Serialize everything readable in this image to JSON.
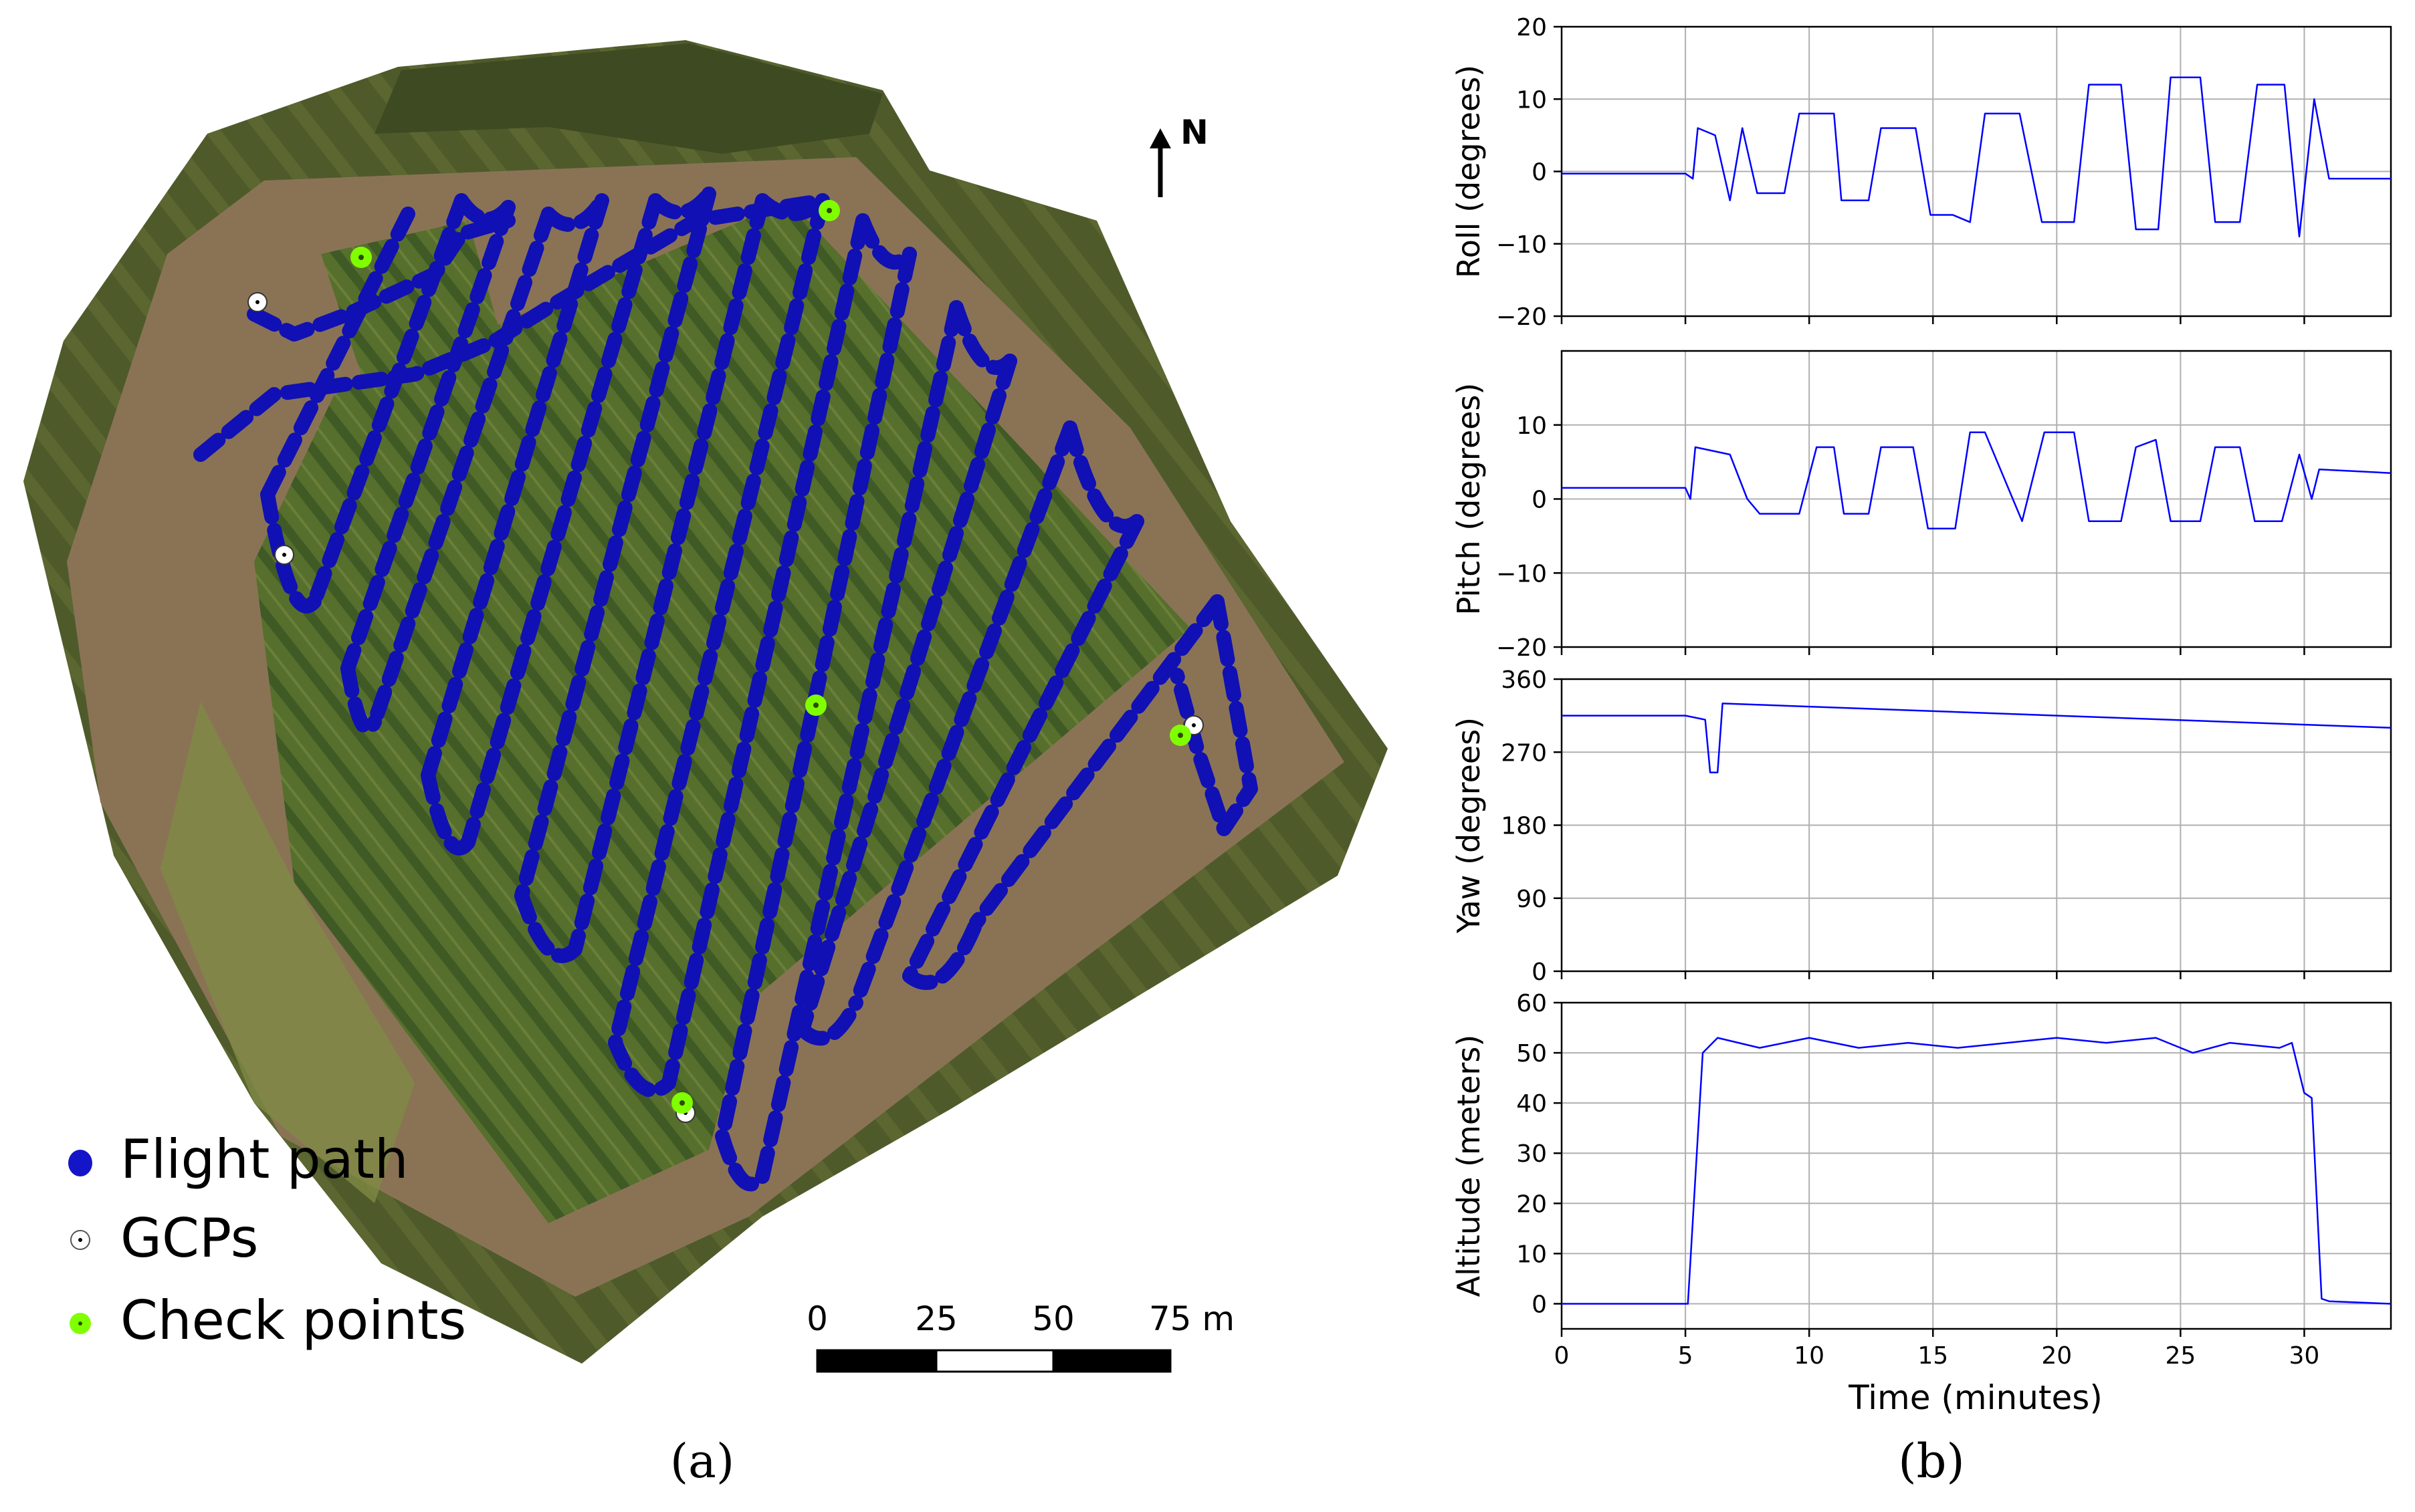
{
  "panel_a": {
    "caption": "(a)",
    "north_label": "N",
    "legend": [
      {
        "label": "Flight path",
        "marker": "flight-path",
        "color": "#1414c8"
      },
      {
        "label": "GCPs",
        "marker": "gcp",
        "color": "#ffffff"
      },
      {
        "label": "Check points",
        "marker": "check-point",
        "color": "#7fff00"
      }
    ],
    "scale_bar": {
      "ticks": [
        "0",
        "25",
        "50",
        "75 m"
      ]
    },
    "colors": {
      "flight_path": "#1010b4",
      "field": "#4d6b2c",
      "soil": "#8a7355",
      "check_point": "#7fff00",
      "gcp": "#ffffff"
    }
  },
  "panel_b": {
    "caption": "(b)",
    "xlabel": "Time (minutes)",
    "line_color": "#0000ff"
  },
  "chart_data": [
    {
      "type": "line",
      "name": "roll",
      "ylabel": "Roll (degrees)",
      "ylim": [
        -20,
        20
      ],
      "yticks": [
        -20,
        -10,
        0,
        10,
        20
      ],
      "xlim": [
        0,
        33.5
      ],
      "xticks": [
        0,
        5,
        10,
        15,
        20,
        25,
        30
      ],
      "grid": true,
      "series": [
        {
          "name": "Roll",
          "x": [
            0,
            5,
            5.3,
            5.5,
            6.2,
            6.8,
            7.3,
            7.9,
            9.0,
            9.6,
            11.0,
            11.3,
            12.4,
            12.9,
            14.3,
            14.9,
            15.8,
            16.5,
            17.1,
            18.5,
            19.4,
            20.7,
            21.3,
            22.6,
            23.2,
            24.1,
            24.6,
            25.8,
            26.4,
            27.4,
            28.1,
            29.2,
            29.8,
            30.4,
            31,
            33.5
          ],
          "values": [
            -0.3,
            -0.3,
            -1,
            6,
            5,
            -4,
            6,
            -3,
            -3,
            8,
            8,
            -4,
            -4,
            6,
            6,
            -6,
            -6,
            -7,
            8,
            8,
            -7,
            -7,
            12,
            12,
            -8,
            -8,
            13,
            13,
            -7,
            -7,
            12,
            12,
            -9,
            10,
            -1,
            -1
          ]
        }
      ]
    },
    {
      "type": "line",
      "name": "pitch",
      "ylabel": "Pitch (degrees)",
      "ylim": [
        -20,
        20
      ],
      "yticks": [
        -20,
        -10,
        0,
        10
      ],
      "xlim": [
        0,
        33.5
      ],
      "xticks": [
        0,
        5,
        10,
        15,
        20,
        25,
        30
      ],
      "grid": true,
      "series": [
        {
          "name": "Pitch",
          "x": [
            0,
            5,
            5.2,
            5.4,
            6.8,
            7.5,
            8,
            9.6,
            10.3,
            11,
            11.4,
            12.4,
            12.9,
            14.2,
            14.8,
            15.9,
            16.5,
            17.1,
            18.6,
            19.5,
            20.7,
            21.3,
            22.6,
            23.2,
            24,
            24.6,
            25.8,
            26.4,
            27.4,
            28,
            29.1,
            29.8,
            30.3,
            30.6,
            33.5
          ],
          "values": [
            1.5,
            1.5,
            0,
            7,
            6,
            0,
            -2,
            -2,
            7,
            7,
            -2,
            -2,
            7,
            7,
            -4,
            -4,
            9,
            9,
            -3,
            9,
            9,
            -3,
            -3,
            7,
            8,
            -3,
            -3,
            7,
            7,
            -3,
            -3,
            6,
            0,
            4,
            3.5
          ]
        }
      ]
    },
    {
      "type": "line",
      "name": "yaw",
      "ylabel": "Yaw (degrees)",
      "ylim": [
        0,
        360
      ],
      "yticks": [
        0,
        90,
        180,
        270,
        360
      ],
      "xlim": [
        0,
        33.5
      ],
      "xticks": [
        0,
        5,
        10,
        15,
        20,
        25,
        30
      ],
      "grid": true,
      "series": [
        {
          "name": "Yaw",
          "x": [
            0,
            5,
            5.8,
            6.0,
            6.3,
            6.5,
            33.5
          ],
          "values": [
            315,
            315,
            310,
            245,
            245,
            330,
            300
          ]
        }
      ]
    },
    {
      "type": "line",
      "name": "altitude",
      "ylabel": "Altitude (meters)",
      "ylim": [
        -5,
        60
      ],
      "yticks": [
        0,
        10,
        20,
        30,
        40,
        50,
        60
      ],
      "xlim": [
        0,
        33.5
      ],
      "xticks": [
        0,
        5,
        10,
        15,
        20,
        25,
        30
      ],
      "xlabel": "Time (minutes)",
      "grid": true,
      "series": [
        {
          "name": "Altitude",
          "x": [
            0,
            5.1,
            5.7,
            6.3,
            8,
            10,
            12,
            14,
            16,
            18,
            20,
            22,
            24,
            25.5,
            27,
            29,
            29.5,
            30,
            30.3,
            30.7,
            31,
            33.5
          ],
          "values": [
            0,
            0,
            50,
            53,
            51,
            53,
            51,
            52,
            51,
            52,
            53,
            52,
            53,
            50,
            52,
            51,
            52,
            42,
            41,
            1,
            0.5,
            0
          ]
        }
      ]
    }
  ]
}
